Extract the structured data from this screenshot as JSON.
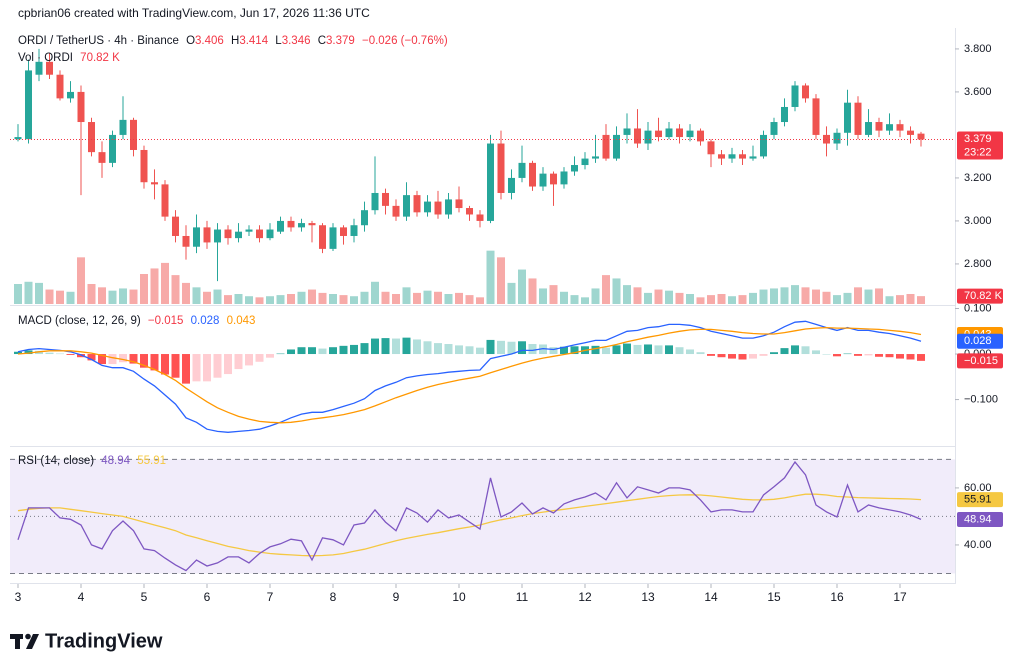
{
  "header": {
    "attribution": "cpbrian06 created with TradingView.com, Jun 17, 2026 11:36 UTC"
  },
  "chart_data": [
    {
      "type": "candlestick",
      "title": "ORDI / TetherUS · 4h · Binance",
      "legend_letters": [
        "O",
        "H",
        "L",
        "C"
      ],
      "change": "−0.026 (−0.76%)",
      "countdown": "23:22",
      "up_color": "#26a69a",
      "down_color": "#ef5350",
      "badge_color": "#f23645",
      "open": [
        3.38,
        3.38,
        3.68,
        3.74,
        3.68,
        3.57,
        3.6,
        3.46,
        3.32,
        3.27,
        3.4,
        3.47,
        3.33,
        3.18,
        3.17,
        3.02,
        2.93,
        2.88,
        2.97,
        2.9,
        2.96,
        2.92,
        2.95,
        2.96,
        2.92,
        2.95,
        3.0,
        2.97,
        2.99,
        2.98,
        2.87,
        2.97,
        2.93,
        2.98,
        3.05,
        3.13,
        3.07,
        3.02,
        3.12,
        3.04,
        3.09,
        3.03,
        3.1,
        3.06,
        3.03,
        3.0,
        3.36,
        3.13,
        3.2,
        3.27,
        3.16,
        3.22,
        3.17,
        3.23,
        3.26,
        3.29,
        3.4,
        3.29,
        3.4,
        3.43,
        3.36,
        3.42,
        3.39,
        3.43,
        3.39,
        3.42,
        3.37,
        3.31,
        3.29,
        3.31,
        3.29,
        3.3,
        3.4,
        3.46,
        3.53,
        3.63,
        3.57,
        3.4,
        3.36,
        3.41,
        3.55,
        3.4,
        3.46,
        3.42,
        3.45,
        3.42,
        3.406
      ],
      "high": [
        3.45,
        3.75,
        3.8,
        3.78,
        3.7,
        3.65,
        3.63,
        3.48,
        3.37,
        3.42,
        3.58,
        3.48,
        3.35,
        3.24,
        3.19,
        3.05,
        2.98,
        3.03,
        3.0,
        2.99,
        2.98,
        2.99,
        2.98,
        2.98,
        2.99,
        3.02,
        3.02,
        3.01,
        3.0,
        2.99,
        2.99,
        2.98,
        3.01,
        3.09,
        3.3,
        3.15,
        3.1,
        3.18,
        3.14,
        3.12,
        3.14,
        3.13,
        3.16,
        3.07,
        3.05,
        3.4,
        3.42,
        3.24,
        3.35,
        3.28,
        3.25,
        3.23,
        3.25,
        3.3,
        3.32,
        3.4,
        3.45,
        3.44,
        3.5,
        3.52,
        3.46,
        3.48,
        3.46,
        3.45,
        3.45,
        3.43,
        3.38,
        3.33,
        3.34,
        3.33,
        3.35,
        3.42,
        3.48,
        3.57,
        3.65,
        3.64,
        3.59,
        3.44,
        3.43,
        3.61,
        3.58,
        3.52,
        3.48,
        3.5,
        3.47,
        3.44,
        3.414
      ],
      "low": [
        3.37,
        3.36,
        3.65,
        3.66,
        3.56,
        3.55,
        3.12,
        3.3,
        3.2,
        3.25,
        3.38,
        3.3,
        3.15,
        3.1,
        3.0,
        2.9,
        2.82,
        2.85,
        2.87,
        2.72,
        2.89,
        2.9,
        2.93,
        2.9,
        2.91,
        2.94,
        2.95,
        2.95,
        2.9,
        2.85,
        2.86,
        2.89,
        2.9,
        2.95,
        3.03,
        3.03,
        3.0,
        3.0,
        3.02,
        3.02,
        3.01,
        3.01,
        3.04,
        3.0,
        2.97,
        2.99,
        3.1,
        3.1,
        3.18,
        3.14,
        3.14,
        3.07,
        3.15,
        3.21,
        3.24,
        3.27,
        3.28,
        3.28,
        3.36,
        3.34,
        3.33,
        3.37,
        3.38,
        3.36,
        3.37,
        3.35,
        3.25,
        3.26,
        3.27,
        3.26,
        3.28,
        3.29,
        3.38,
        3.44,
        3.51,
        3.55,
        3.38,
        3.3,
        3.33,
        3.35,
        3.38,
        3.39,
        3.39,
        3.4,
        3.39,
        3.36,
        3.346
      ],
      "close": [
        3.39,
        3.7,
        3.74,
        3.68,
        3.57,
        3.6,
        3.46,
        3.32,
        3.27,
        3.4,
        3.47,
        3.33,
        3.18,
        3.17,
        3.02,
        2.93,
        2.88,
        2.97,
        2.9,
        2.96,
        2.92,
        2.95,
        2.96,
        2.92,
        2.96,
        3.0,
        2.97,
        2.99,
        2.98,
        2.87,
        2.97,
        2.93,
        2.98,
        3.05,
        3.13,
        3.07,
        3.02,
        3.12,
        3.04,
        3.09,
        3.03,
        3.1,
        3.06,
        3.03,
        3.0,
        3.36,
        3.13,
        3.2,
        3.27,
        3.16,
        3.22,
        3.17,
        3.23,
        3.26,
        3.29,
        3.3,
        3.29,
        3.4,
        3.43,
        3.36,
        3.42,
        3.39,
        3.43,
        3.39,
        3.42,
        3.37,
        3.31,
        3.29,
        3.31,
        3.29,
        3.3,
        3.4,
        3.46,
        3.53,
        3.63,
        3.57,
        3.4,
        3.36,
        3.41,
        3.55,
        3.4,
        3.46,
        3.42,
        3.45,
        3.42,
        3.4,
        3.379
      ],
      "ylim": [
        2.609,
        3.888
      ],
      "yticks": [
        {
          "value": 3.8,
          "label": "3.800"
        },
        {
          "value": 3.6,
          "label": "3.600"
        },
        {
          "value": 3.2,
          "label": "3.200"
        },
        {
          "value": 3.0,
          "label": "3.000"
        },
        {
          "value": 2.8,
          "label": "2.800"
        }
      ],
      "xticks": [
        {
          "value": 0,
          "label": "3"
        },
        {
          "value": 6,
          "label": "4"
        },
        {
          "value": 12,
          "label": "5"
        },
        {
          "value": 18,
          "label": "6"
        },
        {
          "value": 24,
          "label": "7"
        },
        {
          "value": 30,
          "label": "8"
        },
        {
          "value": 36,
          "label": "9"
        },
        {
          "value": 42,
          "label": "10"
        },
        {
          "value": 48,
          "label": "11"
        },
        {
          "value": 54,
          "label": "12"
        },
        {
          "value": 60,
          "label": "13"
        },
        {
          "value": 66,
          "label": "14"
        },
        {
          "value": 72,
          "label": "15"
        },
        {
          "value": 78,
          "label": "16"
        },
        {
          "value": 84,
          "label": "17"
        }
      ]
    },
    {
      "type": "bar",
      "title": "Vol · ORDI",
      "legend_label": "70.82 K",
      "up_color": "#9fd6cf",
      "down_color": "#f7aaa8",
      "badge_color": "#f23645",
      "values": [
        180000,
        200000,
        190000,
        130000,
        120000,
        110000,
        420000,
        180000,
        150000,
        120000,
        140000,
        130000,
        270000,
        320000,
        370000,
        260000,
        190000,
        150000,
        110000,
        130000,
        80000,
        90000,
        70000,
        60000,
        70000,
        80000,
        90000,
        110000,
        130000,
        100000,
        90000,
        80000,
        70000,
        110000,
        200000,
        110000,
        90000,
        150000,
        100000,
        120000,
        110000,
        90000,
        100000,
        80000,
        60000,
        480000,
        420000,
        190000,
        310000,
        230000,
        140000,
        170000,
        110000,
        80000,
        60000,
        140000,
        260000,
        230000,
        170000,
        150000,
        100000,
        130000,
        120000,
        100000,
        90000,
        60000,
        80000,
        90000,
        70000,
        80000,
        100000,
        130000,
        140000,
        150000,
        170000,
        150000,
        130000,
        110000,
        80000,
        100000,
        150000,
        130000,
        140000,
        70000,
        80000,
        90000,
        70820
      ],
      "ylim": [
        0,
        540000
      ]
    },
    {
      "type": "macd",
      "title": "MACD (close, 12, 26, 9)",
      "colors": {
        "grow_above": "#26a69a",
        "fall_above": "#b2dfdb",
        "grow_below": "#ffcdd2",
        "fall_below": "#ff5252"
      },
      "series": [
        {
          "style": "histogram",
          "legend_label": "−0.015",
          "color": "#f23645",
          "values": [
            0.005,
            0.008,
            0.007,
            0.003,
            0.001,
            -0.002,
            -0.007,
            -0.014,
            -0.022,
            -0.022,
            -0.018,
            -0.021,
            -0.03,
            -0.036,
            -0.045,
            -0.052,
            -0.065,
            -0.06,
            -0.06,
            -0.052,
            -0.044,
            -0.033,
            -0.025,
            -0.017,
            -0.008,
            0.001,
            0.01,
            0.015,
            0.015,
            0.012,
            0.015,
            0.018,
            0.02,
            0.024,
            0.034,
            0.035,
            0.034,
            0.036,
            0.032,
            0.028,
            0.024,
            0.022,
            0.019,
            0.017,
            0.014,
            0.031,
            0.029,
            0.027,
            0.028,
            0.022,
            0.021,
            0.015,
            0.016,
            0.017,
            0.017,
            0.018,
            0.014,
            0.019,
            0.023,
            0.02,
            0.021,
            0.019,
            0.019,
            0.015,
            0.01,
            0.004,
            -0.004,
            -0.007,
            -0.01,
            -0.012,
            -0.01,
            -0.004,
            0.004,
            0.013,
            0.019,
            0.017,
            0.008,
            0.0,
            -0.005,
            0.001,
            -0.004,
            -0.003,
            -0.006,
            -0.007,
            -0.01,
            -0.012,
            -0.015
          ]
        },
        {
          "style": "line",
          "color": "#2962ff",
          "values": [
            0.005,
            0.01,
            0.012,
            0.01,
            0.008,
            0.005,
            -0.002,
            -0.012,
            -0.025,
            -0.03,
            -0.03,
            -0.038,
            -0.055,
            -0.07,
            -0.09,
            -0.11,
            -0.14,
            -0.15,
            -0.165,
            -0.17,
            -0.172,
            -0.17,
            -0.168,
            -0.165,
            -0.158,
            -0.15,
            -0.14,
            -0.132,
            -0.128,
            -0.128,
            -0.122,
            -0.115,
            -0.108,
            -0.098,
            -0.08,
            -0.07,
            -0.062,
            -0.052,
            -0.048,
            -0.045,
            -0.043,
            -0.04,
            -0.038,
            -0.036,
            -0.035,
            -0.01,
            -0.005,
            0.0,
            0.008,
            0.008,
            0.012,
            0.01,
            0.015,
            0.02,
            0.025,
            0.03,
            0.03,
            0.04,
            0.05,
            0.052,
            0.058,
            0.06,
            0.065,
            0.065,
            0.063,
            0.058,
            0.05,
            0.045,
            0.04,
            0.035,
            0.035,
            0.04,
            0.048,
            0.06,
            0.07,
            0.072,
            0.065,
            0.058,
            0.052,
            0.058,
            0.052,
            0.052,
            0.048,
            0.045,
            0.04,
            0.035,
            0.028
          ]
        },
        {
          "style": "line",
          "color": "#ff9800",
          "values": [
            0.0,
            0.002,
            0.005,
            0.007,
            0.007,
            0.007,
            0.005,
            0.002,
            -0.003,
            -0.008,
            -0.012,
            -0.017,
            -0.025,
            -0.034,
            -0.045,
            -0.058,
            -0.075,
            -0.09,
            -0.105,
            -0.118,
            -0.128,
            -0.137,
            -0.143,
            -0.148,
            -0.15,
            -0.151,
            -0.15,
            -0.147,
            -0.143,
            -0.14,
            -0.137,
            -0.133,
            -0.128,
            -0.122,
            -0.114,
            -0.105,
            -0.096,
            -0.088,
            -0.08,
            -0.073,
            -0.067,
            -0.062,
            -0.057,
            -0.053,
            -0.049,
            -0.041,
            -0.034,
            -0.027,
            -0.02,
            -0.014,
            -0.009,
            -0.005,
            -0.001,
            0.003,
            0.008,
            0.012,
            0.016,
            0.021,
            0.027,
            0.032,
            0.037,
            0.041,
            0.046,
            0.05,
            0.053,
            0.054,
            0.054,
            0.052,
            0.05,
            0.047,
            0.045,
            0.044,
            0.044,
            0.047,
            0.051,
            0.055,
            0.057,
            0.058,
            0.057,
            0.057,
            0.056,
            0.055,
            0.054,
            0.052,
            0.05,
            0.047,
            0.043
          ]
        }
      ],
      "ylim": [
        -0.202,
        0.1055
      ],
      "yticks": [
        {
          "value": 0.1,
          "label": "0.100"
        },
        {
          "value": 0,
          "label": "0.000"
        },
        {
          "value": -0.1,
          "label": "−0.100"
        }
      ]
    },
    {
      "type": "rsi",
      "title": "RSI (14, close)",
      "band_color": "#f1ecfa",
      "levels": [
        70,
        50,
        30
      ],
      "series": [
        {
          "color": "#7e57c2",
          "values": [
            41.8,
            53,
            53,
            53,
            49.5,
            49,
            47,
            40,
            38.6,
            45,
            48.4,
            45,
            38.6,
            38,
            35.4,
            33,
            31,
            34.7,
            32.6,
            33.7,
            35.8,
            35.8,
            33.7,
            37,
            39.3,
            40.4,
            42,
            41.4,
            34.7,
            42.5,
            41.8,
            40,
            47,
            47.7,
            52.3,
            48,
            45,
            53,
            51.2,
            48,
            52.3,
            49.5,
            50.5,
            48,
            45.6,
            63.5,
            49.8,
            51.6,
            54.7,
            50.9,
            53,
            51.2,
            54.4,
            55.8,
            56.8,
            58.2,
            55.8,
            61.8,
            56.5,
            60.4,
            59.3,
            58.2,
            60,
            60,
            59.3,
            55.8,
            51.6,
            52.3,
            52.3,
            51.6,
            51.6,
            57.5,
            60.4,
            63.5,
            69.1,
            64.6,
            54,
            51.6,
            49.8,
            61,
            51.6,
            54,
            53,
            52.3,
            51.6,
            50.5,
            48.94
          ]
        },
        {
          "color": "#f5c842",
          "text_color": "#131722",
          "values": [
            52,
            52.5,
            52.8,
            53,
            53,
            52.5,
            52,
            51.5,
            51,
            50.5,
            50,
            49,
            48,
            47,
            46,
            45,
            43.5,
            42.5,
            41.5,
            40.5,
            39.5,
            38.8,
            38,
            37.5,
            37,
            36.7,
            36.5,
            36.3,
            36.2,
            36.3,
            36.5,
            37,
            37.8,
            38.5,
            39.5,
            40.5,
            41.5,
            42.3,
            43,
            43.7,
            44.3,
            45,
            45.7,
            46.3,
            47,
            48,
            48.8,
            49.5,
            50.3,
            51,
            51.5,
            52,
            52.5,
            53,
            53.5,
            54,
            54.5,
            55,
            55.5,
            56,
            56.5,
            57,
            57.3,
            57.5,
            57.6,
            57.5,
            57.2,
            56.8,
            56.4,
            56,
            55.8,
            55.8,
            56,
            56.5,
            57.2,
            57.8,
            57.8,
            57.5,
            57,
            56.8,
            56.6,
            56.5,
            56.4,
            56.3,
            56.2,
            56.1,
            55.91
          ]
        }
      ],
      "ylim": [
        27,
        74
      ],
      "yticks": [
        {
          "value": 60,
          "label": "60.00"
        },
        {
          "value": 40,
          "label": "40.00"
        }
      ]
    }
  ],
  "footer": {
    "logo": "TradingView"
  }
}
